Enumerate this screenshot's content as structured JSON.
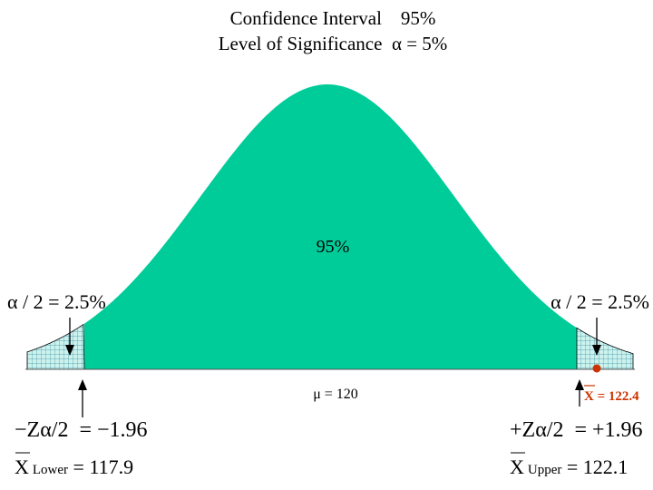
{
  "title": {
    "line1": "Confidence Interval    95%",
    "line2": "Level of Significance  α = 5%"
  },
  "colors": {
    "curve_fill": "#00cc99",
    "tail_fill": "#ccf2ee",
    "tail_grid": "#3a8fa0",
    "sample_marker": "#cc3300",
    "text": "#000000"
  },
  "center_area_label": "95%",
  "left_tail": {
    "alpha_label": "α / 2 = 2.5%",
    "z_label": "−Zα/2  = −1.96",
    "bound_symbol": "X",
    "bound_subscript": "Lower",
    "bound_value": " = 117.9"
  },
  "right_tail": {
    "alpha_label": "α / 2 = 2.5%",
    "z_label": "+Zα/2  = +1.96",
    "bound_symbol": "X",
    "bound_subscript": "Upper",
    "bound_value": " = 122.1"
  },
  "mean_label": "μ = 120",
  "sample_mean": {
    "label": "X = 122.4",
    "value": 122.4
  },
  "distribution": {
    "mean": 120,
    "z_critical": 1.96
  }
}
